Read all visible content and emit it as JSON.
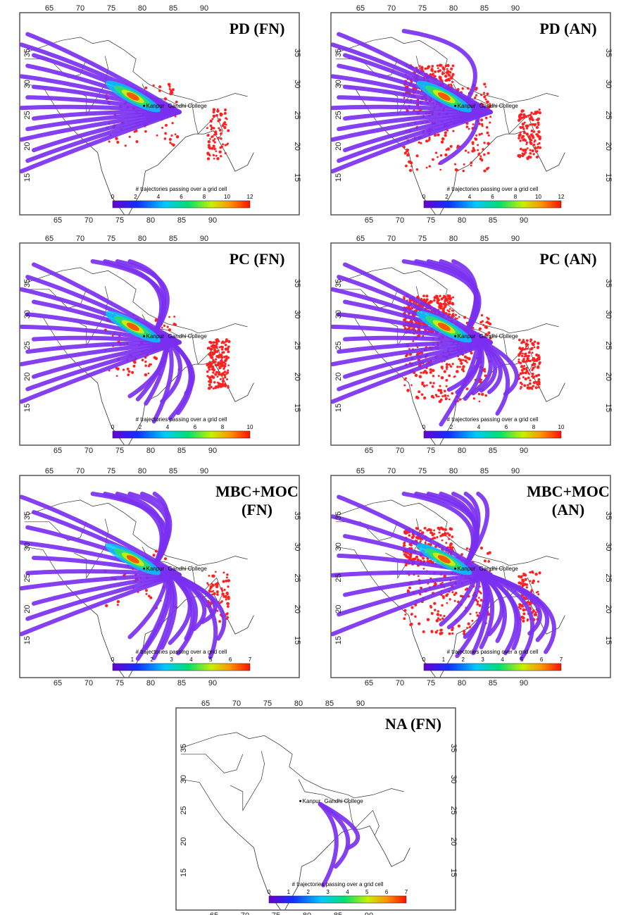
{
  "panels": [
    {
      "title": [
        "PD (FN)"
      ],
      "colorbar_ticks": [
        0,
        2,
        4,
        6,
        8,
        10,
        12
      ]
    },
    {
      "title": [
        "PD (AN)"
      ],
      "colorbar_ticks": [
        0,
        2,
        4,
        6,
        8,
        10,
        12
      ]
    },
    {
      "title": [
        "PC (FN)"
      ],
      "colorbar_ticks": [
        0,
        2,
        4,
        6,
        8,
        10
      ]
    },
    {
      "title": [
        "PC (AN)"
      ],
      "colorbar_ticks": [
        0,
        2,
        4,
        6,
        8,
        10
      ]
    },
    {
      "title": [
        "MBC+MOC",
        "(FN)"
      ],
      "colorbar_ticks": [
        0,
        1,
        2,
        3,
        4,
        5,
        6,
        7
      ]
    },
    {
      "title": [
        "MBC+MOC",
        "(AN)"
      ],
      "colorbar_ticks": [
        0,
        1,
        2,
        3,
        4,
        5,
        6,
        7
      ]
    },
    {
      "title": [
        "NA (FN)"
      ],
      "colorbar_ticks": [
        0,
        1,
        2,
        3,
        4,
        5,
        6,
        7
      ]
    }
  ],
  "lon_ticks": [
    65,
    70,
    75,
    80,
    85,
    90
  ],
  "lat_ticks": [
    35,
    30,
    25,
    20,
    15
  ],
  "colorbar_label": "# trajectories passing over a grid cell",
  "sites": [
    "Kanpur",
    "Gandhi College"
  ]
}
